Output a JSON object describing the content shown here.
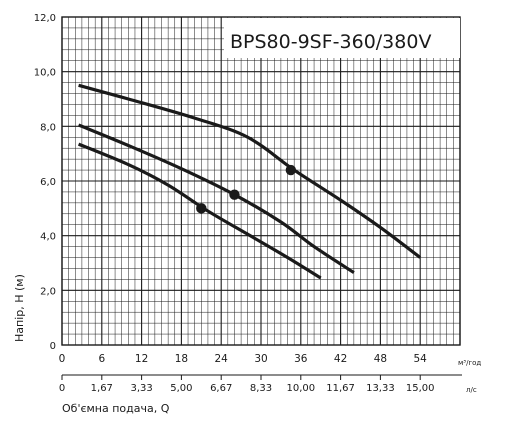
{
  "chart_data": {
    "type": "line",
    "title": "BPS80-9SF-360/380V",
    "xlabel": "Об'ємна подача, Q",
    "ylabel": "Напір, Н (м)",
    "x_unit": "м³/год",
    "x2_unit": "л/с",
    "xlim": [
      0,
      60
    ],
    "ylim": [
      0,
      12
    ],
    "x_ticks": [
      0,
      6,
      12,
      18,
      24,
      30,
      36,
      42,
      48,
      54
    ],
    "x_tick_labels": [
      "0",
      "6",
      "12",
      "18",
      "24",
      "30",
      "36",
      "42",
      "48",
      "54"
    ],
    "x2_tick_labels": [
      "0",
      "1,67",
      "3,33",
      "5,00",
      "6,67",
      "8,33",
      "10,00",
      "11,67",
      "13,33",
      "15,00"
    ],
    "y_ticks": [
      0,
      2,
      4,
      6,
      8,
      10,
      12
    ],
    "y_tick_labels": [
      "0",
      "2,0",
      "4,0",
      "6,0",
      "8,0",
      "10,0",
      "12,0"
    ],
    "grid": true,
    "series": [
      {
        "x": [
          2.5,
          10,
          20,
          28,
          35,
          42,
          48,
          54
        ],
        "y": [
          9.5,
          9.0,
          8.3,
          7.6,
          6.4,
          5.3,
          4.3,
          3.2
        ],
        "marker": {
          "x": 34.5,
          "y": 6.4
        }
      },
      {
        "x": [
          2.5,
          10,
          18,
          26,
          33,
          38,
          44
        ],
        "y": [
          8.05,
          7.3,
          6.45,
          5.5,
          4.5,
          3.6,
          2.65
        ],
        "marker": {
          "x": 26,
          "y": 5.5
        }
      },
      {
        "x": [
          2.5,
          10,
          16,
          22,
          28,
          34,
          39
        ],
        "y": [
          7.35,
          6.6,
          5.85,
          4.9,
          4.05,
          3.2,
          2.45
        ],
        "marker": {
          "x": 21,
          "y": 5.0
        }
      }
    ],
    "colors": {
      "curve": "#1a1a1a",
      "grid": "#1a1a1a",
      "background": "#ffffff"
    }
  }
}
